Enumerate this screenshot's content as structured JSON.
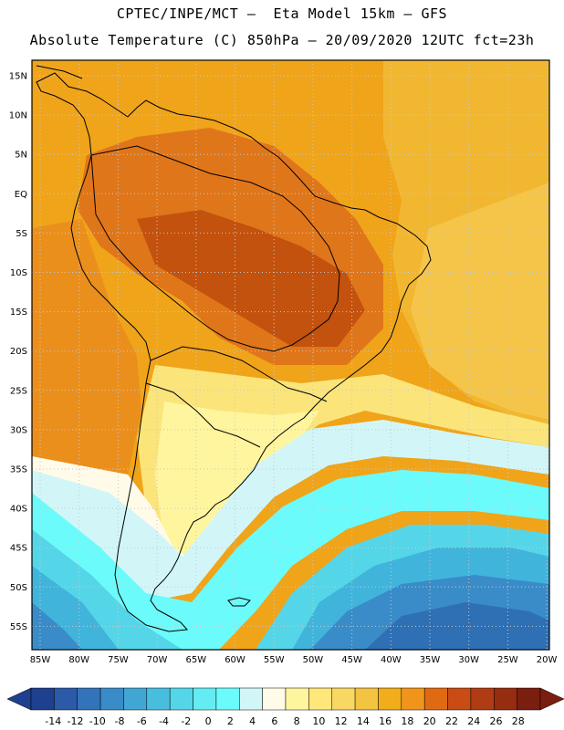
{
  "header": {
    "line1": "CPTEC/INPE/MCT —  Eta Model 15km — GFS",
    "line2": "Absolute Temperature (C) 850hPa — 20/09/2020 12UTC fct=23h"
  },
  "axes": {
    "lat_labels": [
      "15N",
      "10N",
      "5N",
      "EQ",
      "5S",
      "10S",
      "15S",
      "20S",
      "25S",
      "30S",
      "35S",
      "40S",
      "45S",
      "50S",
      "55S"
    ],
    "lon_labels": [
      "85W",
      "80W",
      "75W",
      "70W",
      "65W",
      "60W",
      "55W",
      "50W",
      "45W",
      "40W",
      "35W",
      "30W",
      "25W",
      "20W"
    ]
  },
  "colorbar": {
    "colors": [
      "#1f3f8f",
      "#2a5aa8",
      "#3273b9",
      "#3a8cc8",
      "#41a6d3",
      "#48bede",
      "#55d6e8",
      "#63ecf1",
      "#6cfbfb",
      "#d2f6f8",
      "#fffbe8",
      "#fff59e",
      "#ffe77a",
      "#f8d762",
      "#f3c442",
      "#f1ae1a",
      "#f0951c",
      "#e06a14",
      "#c94c14",
      "#b03c14",
      "#962c10",
      "#7a1e10"
    ],
    "labels": [
      "-14",
      "-12",
      "-10",
      "-8",
      "-6",
      "-4",
      "-2",
      "0",
      "2",
      "4",
      "6",
      "8",
      "10",
      "12",
      "14",
      "16",
      "18",
      "20",
      "22",
      "24",
      "26",
      "28"
    ]
  },
  "map_colors": {
    "hot_core": "#c3520e",
    "hot": "#e0761a",
    "warm_orange": "#eb8f1c",
    "orange": "#f0a41a",
    "amber": "#f2b730",
    "gold": "#f5c54a",
    "yellow": "#fbe57a",
    "pale_yellow": "#fff59e",
    "cream": "#fffbe8",
    "pale_cyan": "#d2f6f8",
    "cyan": "#6cfbfb",
    "aqua": "#55d6e8",
    "sky": "#41b4dc",
    "blue": "#3a8cc8",
    "dark_blue": "#2f6fb4",
    "coast": "#000000",
    "grid": "#c8c8c8"
  }
}
